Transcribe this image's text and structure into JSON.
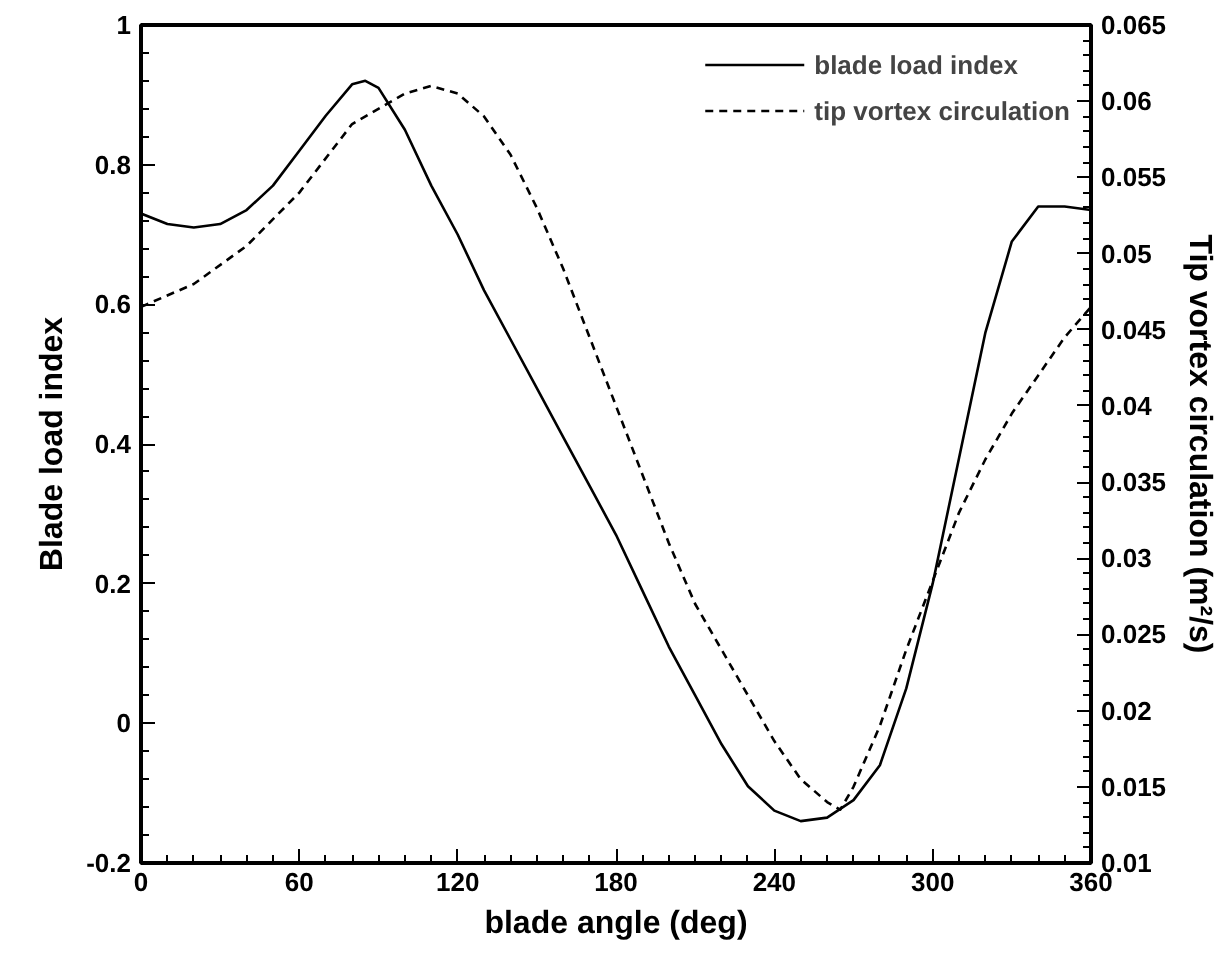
{
  "chart_data": {
    "type": "line",
    "xlabel": "blade angle (deg)",
    "ylabel": "Blade load index",
    "y2label": "Tip vortex circulation (m²/s)",
    "xlim": [
      0,
      360
    ],
    "xticks": [
      0,
      60,
      120,
      180,
      240,
      300,
      360
    ],
    "ylim": [
      -0.2,
      1
    ],
    "yticks": [
      -0.2,
      0,
      0.2,
      0.4,
      0.6,
      0.8,
      1
    ],
    "y2lim": [
      0.01,
      0.065
    ],
    "y2ticks": [
      0.01,
      0.015,
      0.02,
      0.025,
      0.03,
      0.035,
      0.04,
      0.045,
      0.05,
      0.055,
      0.06,
      0.065
    ],
    "x": [
      0,
      10,
      20,
      30,
      40,
      50,
      60,
      70,
      80,
      85,
      90,
      100,
      110,
      120,
      130,
      140,
      150,
      160,
      170,
      180,
      190,
      200,
      210,
      220,
      230,
      240,
      250,
      260,
      270,
      280,
      290,
      300,
      310,
      320,
      330,
      340,
      350,
      360
    ],
    "grid": false,
    "legend": "top right",
    "series": [
      {
        "name": "blade load index",
        "color": "#000000",
        "line_style": "solid",
        "values": [
          0.73,
          0.715,
          0.71,
          0.715,
          0.735,
          0.77,
          0.82,
          0.87,
          0.915,
          0.92,
          0.91,
          0.85,
          0.77,
          0.7,
          0.62,
          0.55,
          0.48,
          0.41,
          0.34,
          0.27,
          0.19,
          0.11,
          0.04,
          -0.03,
          -0.09,
          -0.125,
          -0.14,
          -0.135,
          -0.11,
          -0.06,
          0.05,
          0.2,
          0.38,
          0.56,
          0.69,
          0.74,
          0.74,
          0.735
        ]
      },
      {
        "name": "tip vortex circulation",
        "color": "#000000",
        "line_style": "dashed",
        "axis": "y2",
        "x": [
          0,
          20,
          40,
          60,
          80,
          100,
          110,
          120,
          130,
          140,
          150,
          160,
          170,
          180,
          190,
          200,
          210,
          220,
          230,
          240,
          250,
          260,
          265,
          270,
          280,
          290,
          300,
          310,
          320,
          330,
          340,
          350,
          360
        ],
        "values": [
          0.0465,
          0.048,
          0.0505,
          0.054,
          0.0585,
          0.0605,
          0.061,
          0.0605,
          0.059,
          0.0565,
          0.053,
          0.049,
          0.0445,
          0.04,
          0.0355,
          0.031,
          0.027,
          0.024,
          0.021,
          0.018,
          0.0155,
          0.014,
          0.0135,
          0.015,
          0.019,
          0.024,
          0.0285,
          0.033,
          0.0365,
          0.0395,
          0.042,
          0.0445,
          0.0465
        ]
      }
    ]
  }
}
